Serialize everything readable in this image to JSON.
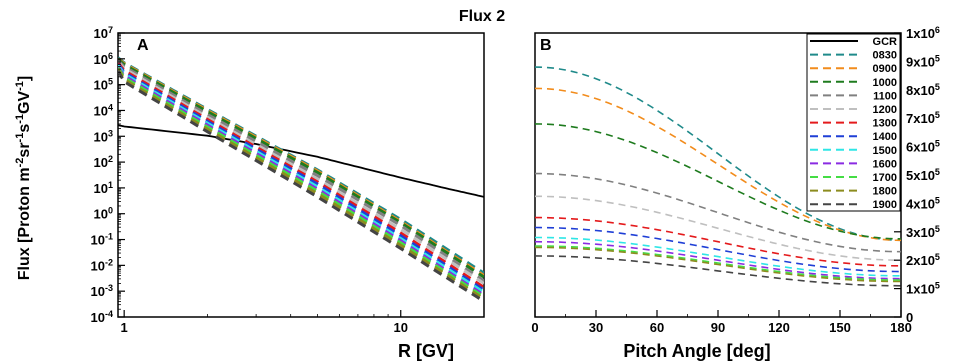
{
  "figure_title": "Flux 2",
  "chart_data": [
    {
      "panel": "A",
      "type": "line",
      "xlabel": "R [GV]",
      "ylabel": "Flux [Proton m-2sr-1s-1GV-1]",
      "xscale": "log",
      "yscale": "log",
      "xlim": [
        0.95,
        20
      ],
      "ylim": [
        0.0001,
        10000000
      ],
      "x_ticks": [
        {
          "value": 1,
          "label": "1"
        },
        {
          "value": 10,
          "label": "10"
        }
      ],
      "y_ticks": [
        {
          "value": 10000000,
          "base": "10",
          "exp": "7"
        },
        {
          "value": 1000000,
          "base": "10",
          "exp": "6"
        },
        {
          "value": 100000,
          "base": "10",
          "exp": "5"
        },
        {
          "value": 10000,
          "base": "10",
          "exp": "4"
        },
        {
          "value": 1000,
          "base": "10",
          "exp": "3"
        },
        {
          "value": 100,
          "base": "10",
          "exp": "2"
        },
        {
          "value": 10,
          "base": "10",
          "exp": "1"
        },
        {
          "value": 1,
          "base": "10",
          "exp": "0"
        },
        {
          "value": 0.1,
          "base": "10",
          "exp": "-1"
        },
        {
          "value": 0.01,
          "base": "10",
          "exp": "-2"
        },
        {
          "value": 0.001,
          "base": "10",
          "exp": "-3"
        },
        {
          "value": 0.0001,
          "base": "10",
          "exp": "-4"
        }
      ],
      "series": [
        {
          "name": "GCR",
          "style": "solid",
          "x": [
            0.95,
            1,
            2,
            3,
            5,
            7,
            10,
            15,
            20
          ],
          "y": [
            2700,
            2400,
            1050,
            500,
            160,
            65,
            25,
            9,
            4.5
          ]
        },
        {
          "name": "0830",
          "style": "dashed",
          "x": [
            0.95,
            1,
            2,
            5,
            10,
            20
          ],
          "y": [
            1100000,
            700000,
            11000,
            50,
            0.6,
            0.005
          ]
        },
        {
          "name": "0900",
          "style": "dashed",
          "x": [
            0.95,
            1,
            2,
            5,
            10,
            20
          ],
          "y": [
            1000000,
            650000,
            10000,
            45,
            0.5,
            0.004
          ]
        },
        {
          "name": "1000",
          "style": "dashed",
          "x": [
            0.95,
            1,
            2,
            5,
            10,
            20
          ],
          "y": [
            950000,
            600000,
            9000,
            40,
            0.45,
            0.0035
          ]
        },
        {
          "name": "1100",
          "style": "dashed",
          "x": [
            0.95,
            1,
            2,
            5,
            10,
            20
          ],
          "y": [
            850000,
            500000,
            7000,
            30,
            0.35,
            0.0025
          ]
        },
        {
          "name": "1200",
          "style": "dashed",
          "x": [
            0.95,
            1,
            2,
            5,
            10,
            20
          ],
          "y": [
            780000,
            420000,
            5500,
            22,
            0.25,
            0.002
          ]
        },
        {
          "name": "1300",
          "style": "dashed",
          "x": [
            0.95,
            1,
            2,
            5,
            10,
            20
          ],
          "y": [
            700000,
            350000,
            4500,
            17,
            0.18,
            0.0014
          ]
        },
        {
          "name": "1400",
          "style": "dashed",
          "x": [
            0.95,
            1,
            2,
            5,
            10,
            20
          ],
          "y": [
            620000,
            300000,
            3800,
            14,
            0.14,
            0.0011
          ]
        },
        {
          "name": "1500",
          "style": "dashed",
          "x": [
            0.95,
            1,
            2,
            5,
            10,
            20
          ],
          "y": [
            560000,
            260000,
            3200,
            11,
            0.11,
            0.0009
          ]
        },
        {
          "name": "1600",
          "style": "dashed",
          "x": [
            0.95,
            1,
            2,
            5,
            10,
            20
          ],
          "y": [
            500000,
            220000,
            2700,
            9,
            0.09,
            0.0007
          ]
        },
        {
          "name": "1700",
          "style": "dashed",
          "x": [
            0.95,
            1,
            2,
            5,
            10,
            20
          ],
          "y": [
            450000,
            190000,
            2300,
            7.5,
            0.075,
            0.0006
          ]
        },
        {
          "name": "1800",
          "style": "dashed",
          "x": [
            0.95,
            1,
            2,
            5,
            10,
            20
          ],
          "y": [
            400000,
            160000,
            1900,
            6,
            0.06,
            0.0005
          ]
        },
        {
          "name": "1900",
          "style": "dashed",
          "x": [
            0.95,
            1,
            2,
            5,
            10,
            20
          ],
          "y": [
            350000,
            130000,
            1500,
            4.5,
            0.045,
            0.0004
          ]
        }
      ]
    },
    {
      "panel": "B",
      "type": "line",
      "xlabel": "Pitch Angle [deg]",
      "ylabel": "",
      "xlim": [
        0,
        180
      ],
      "ylim": [
        0,
        1000000
      ],
      "x_ticks": [
        {
          "value": 0,
          "label": "0"
        },
        {
          "value": 30,
          "label": "30"
        },
        {
          "value": 60,
          "label": "60"
        },
        {
          "value": 90,
          "label": "90"
        },
        {
          "value": 120,
          "label": "120"
        },
        {
          "value": 150,
          "label": "150"
        },
        {
          "value": 180,
          "label": "180"
        }
      ],
      "y_ticks": [
        {
          "value": 1000000,
          "mant": "1x10",
          "exp": "6"
        },
        {
          "value": 900000,
          "mant": "9x10",
          "exp": "5"
        },
        {
          "value": 800000,
          "mant": "8x10",
          "exp": "5"
        },
        {
          "value": 700000,
          "mant": "7x10",
          "exp": "5"
        },
        {
          "value": 600000,
          "mant": "6x10",
          "exp": "5"
        },
        {
          "value": 500000,
          "mant": "5x10",
          "exp": "5"
        },
        {
          "value": 400000,
          "mant": "4x10",
          "exp": "5"
        },
        {
          "value": 300000,
          "mant": "3x10",
          "exp": "5"
        },
        {
          "value": 200000,
          "mant": "2x10",
          "exp": "5"
        },
        {
          "value": 100000,
          "mant": "1x10",
          "exp": "5"
        },
        {
          "value": 0,
          "mant": "0",
          "exp": ""
        }
      ],
      "series": [
        {
          "name": "0830",
          "style": "dashed",
          "y0": 880000,
          "y180": 270000
        },
        {
          "name": "0900",
          "style": "dashed",
          "y0": 805000,
          "y180": 270000
        },
        {
          "name": "1000",
          "style": "dashed",
          "y0": 680000,
          "y180": 275000
        },
        {
          "name": "1100",
          "style": "dashed",
          "y0": 505000,
          "y180": 230000
        },
        {
          "name": "1200",
          "style": "dashed",
          "y0": 425000,
          "y180": 200000
        },
        {
          "name": "1300",
          "style": "dashed",
          "y0": 350000,
          "y180": 180000
        },
        {
          "name": "1400",
          "style": "dashed",
          "y0": 315000,
          "y180": 160000
        },
        {
          "name": "1500",
          "style": "dashed",
          "y0": 280000,
          "y180": 145000
        },
        {
          "name": "1600",
          "style": "dashed",
          "y0": 265000,
          "y180": 135000
        },
        {
          "name": "1700",
          "style": "dashed",
          "y0": 250000,
          "y180": 130000
        },
        {
          "name": "1800",
          "style": "dashed",
          "y0": 245000,
          "y180": 125000
        },
        {
          "name": "1900",
          "style": "dashed",
          "y0": 215000,
          "y180": 110000
        }
      ]
    }
  ],
  "legend": {
    "placement": "top-right",
    "items": [
      {
        "label": "GCR",
        "color": "#000000",
        "style": "solid"
      },
      {
        "label": "0830",
        "color": "#1f8a8a",
        "style": "dashed"
      },
      {
        "label": "0900",
        "color": "#f28c1c",
        "style": "dashed"
      },
      {
        "label": "1000",
        "color": "#1e7b1e",
        "style": "dashed"
      },
      {
        "label": "1100",
        "color": "#808080",
        "style": "dashed"
      },
      {
        "label": "1200",
        "color": "#bfbfbf",
        "style": "dashed"
      },
      {
        "label": "1300",
        "color": "#e41a1c",
        "style": "dashed"
      },
      {
        "label": "1400",
        "color": "#1f3fd6",
        "style": "dashed"
      },
      {
        "label": "1500",
        "color": "#2ee6e6",
        "style": "dashed"
      },
      {
        "label": "1600",
        "color": "#8a2be2",
        "style": "dashed"
      },
      {
        "label": "1700",
        "color": "#44dd44",
        "style": "dashed"
      },
      {
        "label": "1800",
        "color": "#8c8c1f",
        "style": "dashed"
      },
      {
        "label": "1900",
        "color": "#444444",
        "style": "dashed"
      }
    ]
  }
}
